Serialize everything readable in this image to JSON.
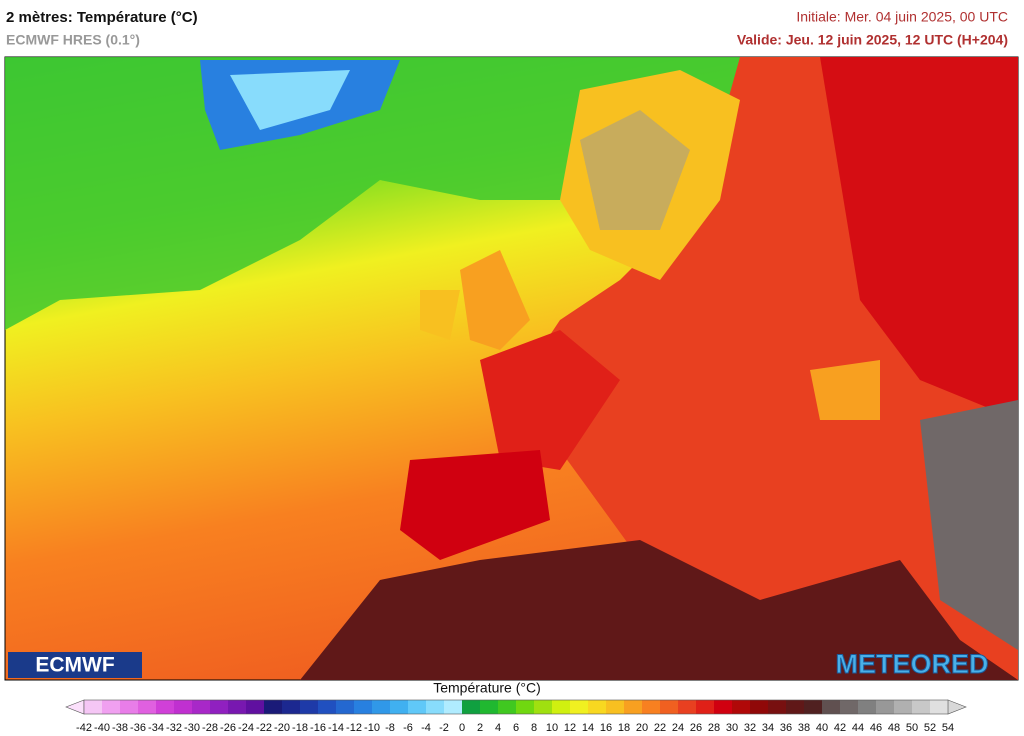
{
  "header": {
    "title": "2 mètres: Température (°C)",
    "subtitle": "ECMWF HRES (0.1°)",
    "initial": "Initiale: Mer. 04 juin 2025, 00 UTC",
    "valid": "Valide: Jeu. 12 juin 2025, 12 UTC (H+204)"
  },
  "logos": {
    "left": "ECMWF",
    "right": "METEORED"
  },
  "colorbar": {
    "title": "Température (°C)",
    "ticks": [
      -42,
      -40,
      -38,
      -36,
      -34,
      -32,
      -30,
      -28,
      -26,
      -24,
      -22,
      -20,
      -18,
      -16,
      -14,
      -12,
      -10,
      -8,
      -6,
      -4,
      -2,
      0,
      2,
      4,
      6,
      8,
      10,
      12,
      14,
      16,
      18,
      20,
      22,
      24,
      26,
      28,
      30,
      32,
      34,
      36,
      38,
      40,
      42,
      44,
      46,
      48,
      50,
      52,
      54
    ],
    "colors": [
      "#f5c6f5",
      "#f0a0f0",
      "#e87de8",
      "#e060e0",
      "#d040d8",
      "#c030d0",
      "#a828c8",
      "#9020c0",
      "#7818b0",
      "#6010a0",
      "#1a1a78",
      "#1c2890",
      "#1e3aa8",
      "#2050c0",
      "#2468d0",
      "#2880e0",
      "#3098e8",
      "#40b0f0",
      "#60c8f8",
      "#88dcfc",
      "#b0ecff",
      "#10a040",
      "#20b830",
      "#40c820",
      "#70d810",
      "#a0e010",
      "#d0f010",
      "#f0f020",
      "#f8d820",
      "#f8c020",
      "#f8a020",
      "#f88020",
      "#f06020",
      "#e84020",
      "#e02018",
      "#d00010",
      "#b00808",
      "#900808",
      "#781010",
      "#601818",
      "#502020",
      "#605050",
      "#706868",
      "#808080",
      "#989898",
      "#b0b0b0",
      "#c8c8c8",
      "#e0e0e0"
    ],
    "under_color": "#fbe0fb",
    "over_color": "#d8d8d8"
  }
}
